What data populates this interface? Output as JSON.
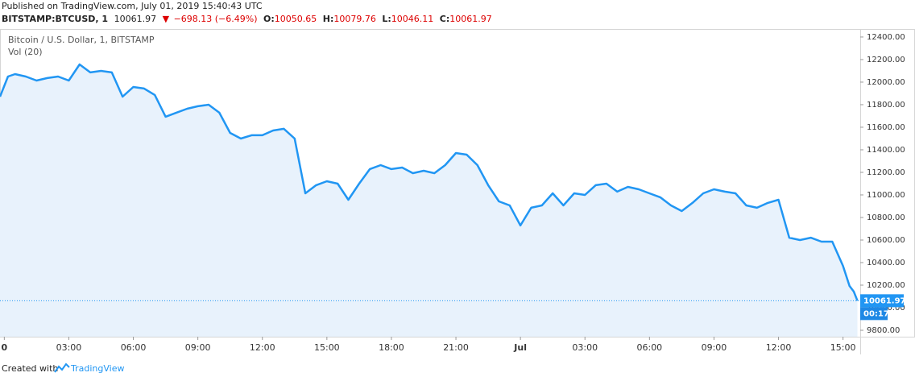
{
  "header": {
    "published": "Published on TradingView.com, July 01, 2019 15:40:43 UTC",
    "symbol": "BITSTAMP:BTCUSD, 1",
    "price": 10061.97,
    "change": "−698.13 (−6.49%)",
    "ohlc": [
      {
        "label": "O:",
        "value": 10050.65
      },
      {
        "label": "H:",
        "value": 10079.76
      },
      {
        "label": "L:",
        "value": 10046.11
      },
      {
        "label": "C:",
        "value": 10061.97
      }
    ]
  },
  "chart_data": {
    "type": "line",
    "title": "Bitcoin / U.S. Dollar, 1, BITSTAMP",
    "indicator": "Vol (20)",
    "color": "#2196f3",
    "area_color": "#e8f2fc",
    "x": [
      -0.2,
      0.17,
      0.5,
      1,
      1.5,
      2,
      2.5,
      3,
      3.5,
      4,
      4.5,
      5,
      5.5,
      6,
      6.5,
      7,
      7.5,
      8,
      8.5,
      9,
      9.5,
      10,
      10.5,
      11,
      11.5,
      12,
      12.5,
      13,
      13.5,
      14,
      14.5,
      15,
      15.5,
      16,
      16.5,
      17,
      17.5,
      18,
      18.5,
      19,
      19.5,
      20,
      20.5,
      21,
      21.5,
      22,
      22.5,
      23,
      23.5,
      24,
      24.5,
      25,
      25.5,
      26,
      26.5,
      27,
      27.5,
      28,
      28.5,
      29,
      29.5,
      30,
      30.5,
      31,
      31.5,
      32,
      32.5,
      33,
      33.5,
      34,
      34.5,
      35,
      35.5,
      36,
      36.5,
      37,
      37.5,
      38,
      38.5,
      39,
      39.3,
      39.5,
      39.67
    ],
    "values": [
      11871,
      12050,
      12071,
      12050,
      12014,
      12036,
      12050,
      12014,
      12157,
      12086,
      12100,
      12086,
      11871,
      11957,
      11943,
      11886,
      11693,
      11729,
      11764,
      11786,
      11800,
      11729,
      11550,
      11500,
      11529,
      11529,
      11571,
      11586,
      11500,
      11014,
      11086,
      11121,
      11100,
      10957,
      11100,
      11229,
      11264,
      11229,
      11243,
      11193,
      11214,
      11193,
      11264,
      11371,
      11357,
      11264,
      11086,
      10943,
      10907,
      10729,
      10886,
      10907,
      11014,
      10907,
      11014,
      11000,
      11086,
      11100,
      11029,
      11071,
      11050,
      11014,
      10979,
      10907,
      10857,
      10929,
      11014,
      11050,
      11029,
      11014,
      10907,
      10886,
      10929,
      10957,
      10621,
      10600,
      10621,
      10586,
      10586,
      10371,
      10193,
      10143,
      10061.97
    ],
    "xlim": [
      -0.2,
      39.8
    ],
    "ylim": [
      9743,
      12471
    ],
    "xticks": [
      {
        "value": 0,
        "label": "0"
      },
      {
        "value": 3,
        "label": "03:00"
      },
      {
        "value": 6,
        "label": "06:00"
      },
      {
        "value": 9,
        "label": "09:00"
      },
      {
        "value": 12,
        "label": "12:00"
      },
      {
        "value": 15,
        "label": "15:00"
      },
      {
        "value": 18,
        "label": "18:00"
      },
      {
        "value": 21,
        "label": "21:00"
      },
      {
        "value": 24,
        "label": "Jul"
      },
      {
        "value": 27,
        "label": "03:00"
      },
      {
        "value": 30,
        "label": "06:00"
      },
      {
        "value": 33,
        "label": "09:00"
      },
      {
        "value": 36,
        "label": "12:00"
      },
      {
        "value": 39,
        "label": "15:00"
      }
    ],
    "yticks": [
      {
        "value": 9800,
        "label": "9800.00"
      },
      {
        "value": 10000,
        "label": "10000.00"
      },
      {
        "value": 10200,
        "label": "10200.00"
      },
      {
        "value": 10400,
        "label": "10400.00"
      },
      {
        "value": 10600,
        "label": "10600.00"
      },
      {
        "value": 10800,
        "label": "10800.00"
      },
      {
        "value": 11000,
        "label": "11000.00"
      },
      {
        "value": 11200,
        "label": "11200.00"
      },
      {
        "value": 11400,
        "label": "11400.00"
      },
      {
        "value": 11600,
        "label": "11600.00"
      },
      {
        "value": 11800,
        "label": "11800.00"
      },
      {
        "value": 12000,
        "label": "12000.00"
      },
      {
        "value": 12200,
        "label": "12200.00"
      },
      {
        "value": 12400,
        "label": "12400.00"
      }
    ],
    "last_price": 10061.97,
    "countdown": "00:17"
  },
  "footer": {
    "created": "Created with",
    "brand": "TradingView"
  }
}
